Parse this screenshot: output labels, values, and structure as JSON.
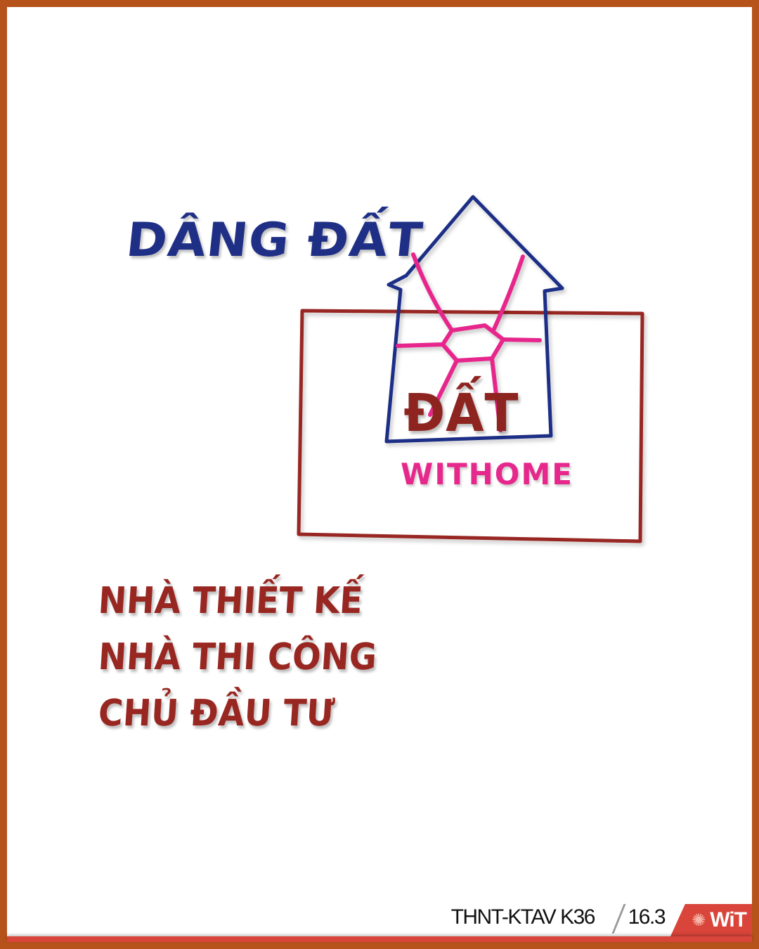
{
  "labels": {
    "title": "DÂNG ĐẤT",
    "center": "ĐẤT",
    "brand": "WITHOME"
  },
  "roles": [
    "NHÀ THIẾT KẾ",
    "NHÀ THI CÔNG",
    "CHỦ ĐẦU TƯ"
  ],
  "footer": {
    "course": "THNT-KTAV K36",
    "number": "16.3",
    "logo_text": "WiT",
    "logo_icon": "sun-icon"
  },
  "colors": {
    "frame": "#b5531b",
    "navy_ink": "#1f2f86",
    "red_ink": "#8e2420",
    "pink_ink": "#e6288c",
    "footer_red": "#d9453a"
  }
}
